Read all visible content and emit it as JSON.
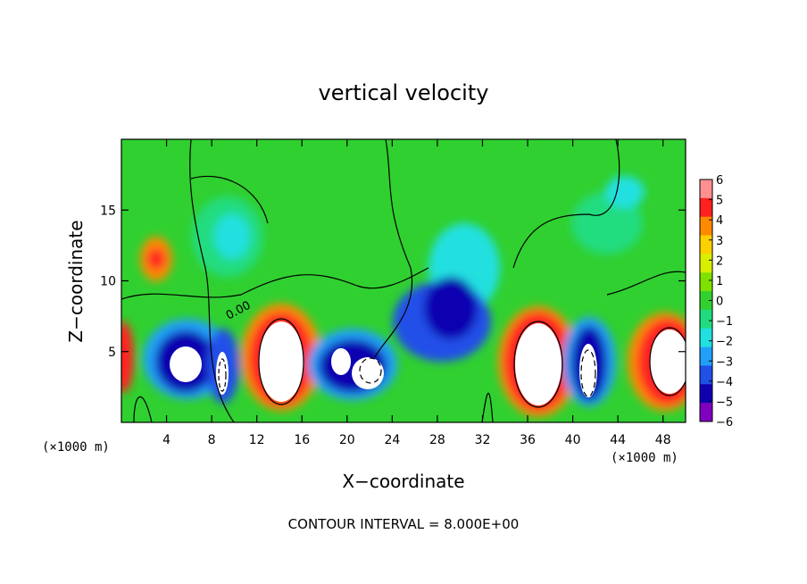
{
  "chart_data": {
    "type": "heatmap",
    "title": "vertical velocity",
    "xlabel": "X−coordinate",
    "ylabel": "Z−coordinate",
    "x_unit_left": "(×1000 m)",
    "x_unit_right": "(×1000 m)",
    "xlim": [
      0,
      50
    ],
    "ylim": [
      0,
      20
    ],
    "x_ticks": [
      4,
      8,
      12,
      16,
      20,
      24,
      28,
      32,
      36,
      40,
      44,
      48
    ],
    "y_ticks": [
      5,
      10,
      15
    ],
    "colorbar": {
      "ticks": [
        "6",
        "5",
        "4",
        "3",
        "2",
        "1",
        "0",
        "−1",
        "−2",
        "−3",
        "−4",
        "−5",
        "−6"
      ],
      "colors": [
        "#ff9090",
        "#ff2020",
        "#ff8a00",
        "#ffd000",
        "#d8f000",
        "#80e000",
        "#30d030",
        "#20dc80",
        "#20e0e0",
        "#20a0f8",
        "#2050e8",
        "#1000b0",
        "#8000c0"
      ],
      "range": [
        -6,
        6
      ]
    },
    "contour_label": "0.00",
    "contour_interval_text": "CONTOUR INTERVAL = 8.000E+00",
    "grid": false
  }
}
